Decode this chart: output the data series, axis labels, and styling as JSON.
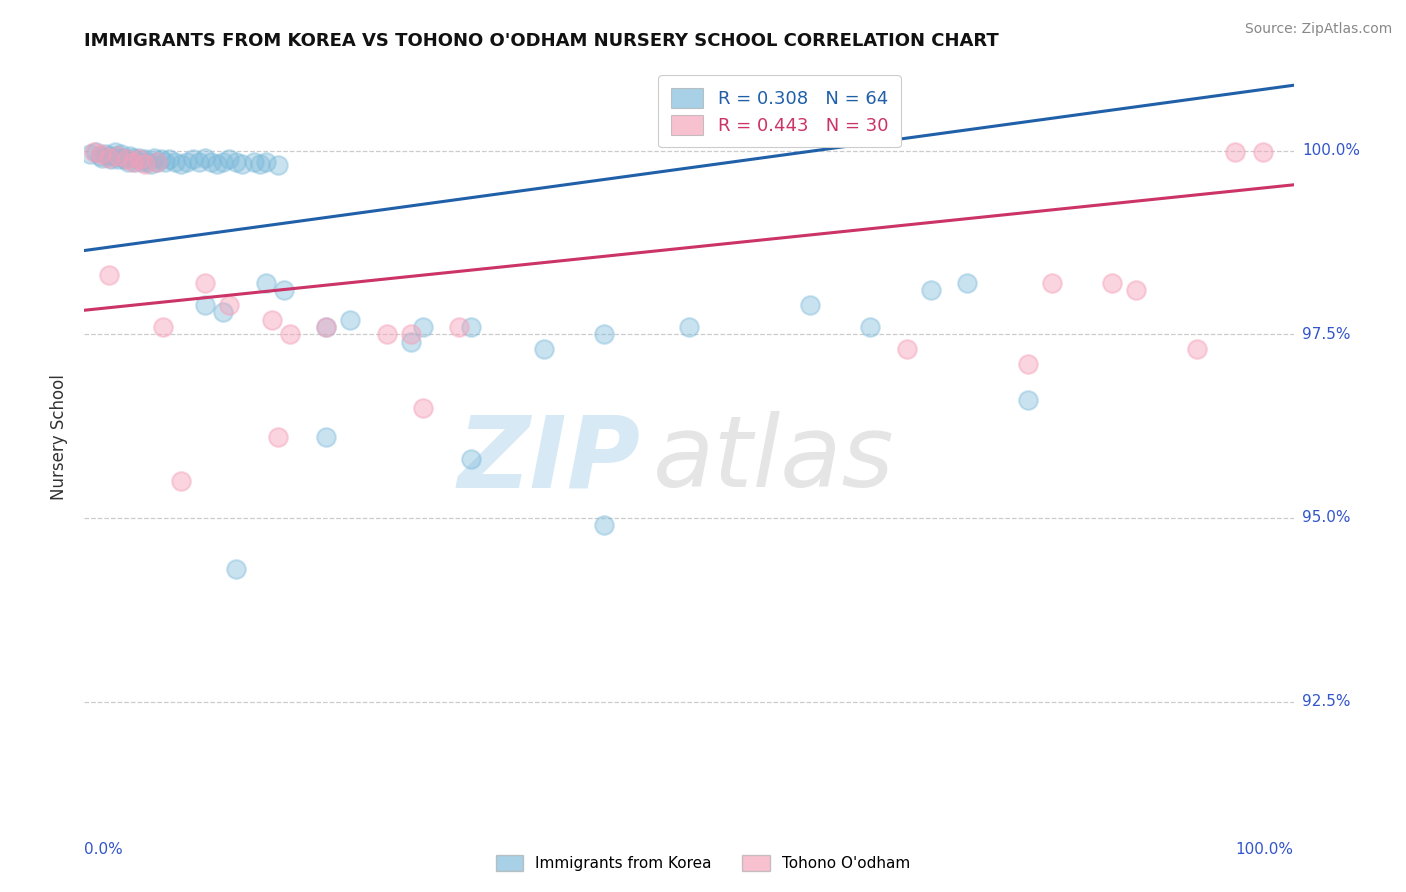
{
  "title": "IMMIGRANTS FROM KOREA VS TOHONO O'ODHAM NURSERY SCHOOL CORRELATION CHART",
  "source": "Source: ZipAtlas.com",
  "ylabel": "Nursery School",
  "ytick_labels": [
    "92.5%",
    "95.0%",
    "97.5%",
    "100.0%"
  ],
  "ytick_values": [
    0.925,
    0.95,
    0.975,
    1.0
  ],
  "xlim": [
    0.0,
    1.0
  ],
  "ylim": [
    0.91,
    1.012
  ],
  "legend_blue_r": "R = 0.308",
  "legend_blue_n": "N = 64",
  "legend_pink_r": "R = 0.443",
  "legend_pink_n": "N = 30",
  "legend_blue_label": "Immigrants from Korea",
  "legend_pink_label": "Tohono O'odham",
  "blue_color": "#7ab8d9",
  "pink_color": "#f4a0b8",
  "blue_line_color": "#2060a8",
  "pink_line_color": "#cc3366",
  "watermark_zip": "ZIP",
  "watermark_atlas": "atlas",
  "blue_r": 0.308,
  "pink_r": 0.443,
  "blue_points": [
    [
      0.005,
      0.9995
    ],
    [
      0.01,
      0.9998
    ],
    [
      0.013,
      0.9993
    ],
    [
      0.015,
      0.999
    ],
    [
      0.018,
      0.9995
    ],
    [
      0.02,
      0.9992
    ],
    [
      0.022,
      0.9988
    ],
    [
      0.025,
      0.9998
    ],
    [
      0.026,
      0.9992
    ],
    [
      0.028,
      0.9988
    ],
    [
      0.03,
      0.9995
    ],
    [
      0.032,
      0.999
    ],
    [
      0.034,
      0.9988
    ],
    [
      0.036,
      0.9985
    ],
    [
      0.038,
      0.9992
    ],
    [
      0.04,
      0.999
    ],
    [
      0.042,
      0.9985
    ],
    [
      0.045,
      0.999
    ],
    [
      0.048,
      0.9985
    ],
    [
      0.05,
      0.9988
    ],
    [
      0.052,
      0.9985
    ],
    [
      0.055,
      0.9982
    ],
    [
      0.058,
      0.999
    ],
    [
      0.06,
      0.9985
    ],
    [
      0.063,
      0.9988
    ],
    [
      0.067,
      0.9985
    ],
    [
      0.07,
      0.9988
    ],
    [
      0.075,
      0.9985
    ],
    [
      0.08,
      0.9982
    ],
    [
      0.085,
      0.9985
    ],
    [
      0.09,
      0.9988
    ],
    [
      0.095,
      0.9985
    ],
    [
      0.1,
      0.999
    ],
    [
      0.105,
      0.9985
    ],
    [
      0.11,
      0.9982
    ],
    [
      0.115,
      0.9985
    ],
    [
      0.12,
      0.9988
    ],
    [
      0.125,
      0.9985
    ],
    [
      0.13,
      0.9982
    ],
    [
      0.14,
      0.9985
    ],
    [
      0.145,
      0.9982
    ],
    [
      0.15,
      0.9985
    ],
    [
      0.16,
      0.998
    ],
    [
      0.1,
      0.979
    ],
    [
      0.115,
      0.978
    ],
    [
      0.15,
      0.982
    ],
    [
      0.165,
      0.981
    ],
    [
      0.2,
      0.976
    ],
    [
      0.22,
      0.977
    ],
    [
      0.27,
      0.974
    ],
    [
      0.28,
      0.976
    ],
    [
      0.32,
      0.976
    ],
    [
      0.38,
      0.973
    ],
    [
      0.43,
      0.975
    ],
    [
      0.5,
      0.976
    ],
    [
      0.6,
      0.979
    ],
    [
      0.65,
      0.976
    ],
    [
      0.7,
      0.981
    ],
    [
      0.73,
      0.982
    ],
    [
      0.78,
      0.966
    ],
    [
      0.125,
      0.943
    ],
    [
      0.2,
      0.961
    ],
    [
      0.32,
      0.958
    ],
    [
      0.43,
      0.949
    ]
  ],
  "pink_points": [
    [
      0.008,
      0.9998
    ],
    [
      0.014,
      0.9995
    ],
    [
      0.02,
      0.999
    ],
    [
      0.028,
      0.9992
    ],
    [
      0.035,
      0.9988
    ],
    [
      0.04,
      0.9985
    ],
    [
      0.045,
      0.9988
    ],
    [
      0.05,
      0.9982
    ],
    [
      0.06,
      0.9985
    ],
    [
      0.02,
      0.983
    ],
    [
      0.065,
      0.976
    ],
    [
      0.1,
      0.982
    ],
    [
      0.12,
      0.979
    ],
    [
      0.155,
      0.977
    ],
    [
      0.17,
      0.975
    ],
    [
      0.27,
      0.975
    ],
    [
      0.31,
      0.976
    ],
    [
      0.28,
      0.965
    ],
    [
      0.16,
      0.961
    ],
    [
      0.08,
      0.955
    ],
    [
      0.2,
      0.976
    ],
    [
      0.25,
      0.975
    ],
    [
      0.78,
      0.971
    ],
    [
      0.68,
      0.973
    ],
    [
      0.8,
      0.982
    ],
    [
      0.85,
      0.982
    ],
    [
      0.87,
      0.981
    ],
    [
      0.92,
      0.973
    ],
    [
      0.952,
      0.9998
    ],
    [
      0.975,
      0.9998
    ]
  ]
}
